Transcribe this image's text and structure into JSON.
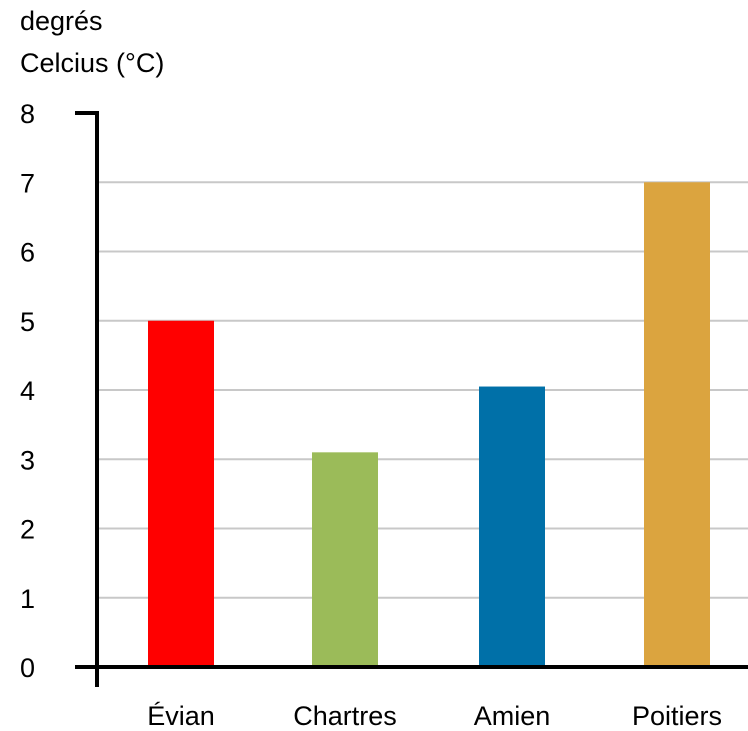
{
  "chart_data": {
    "type": "bar",
    "title": "",
    "ylabel_lines": [
      "degrés",
      "Celcius (°C)"
    ],
    "xlabel": "",
    "categories": [
      "Évian",
      "Chartres",
      "Amien",
      "Poitiers"
    ],
    "values": [
      5,
      3.1,
      4.05,
      7
    ],
    "colors": [
      "#ff0000",
      "#9bbb59",
      "#0070a8",
      "#dba43f"
    ],
    "ylim": [
      0,
      8
    ],
    "yticks": [
      0,
      1,
      2,
      3,
      4,
      5,
      6,
      7,
      8
    ],
    "grid": true,
    "legend": "none",
    "axis_color": "#000000",
    "grid_color": "#c8c8c8"
  }
}
